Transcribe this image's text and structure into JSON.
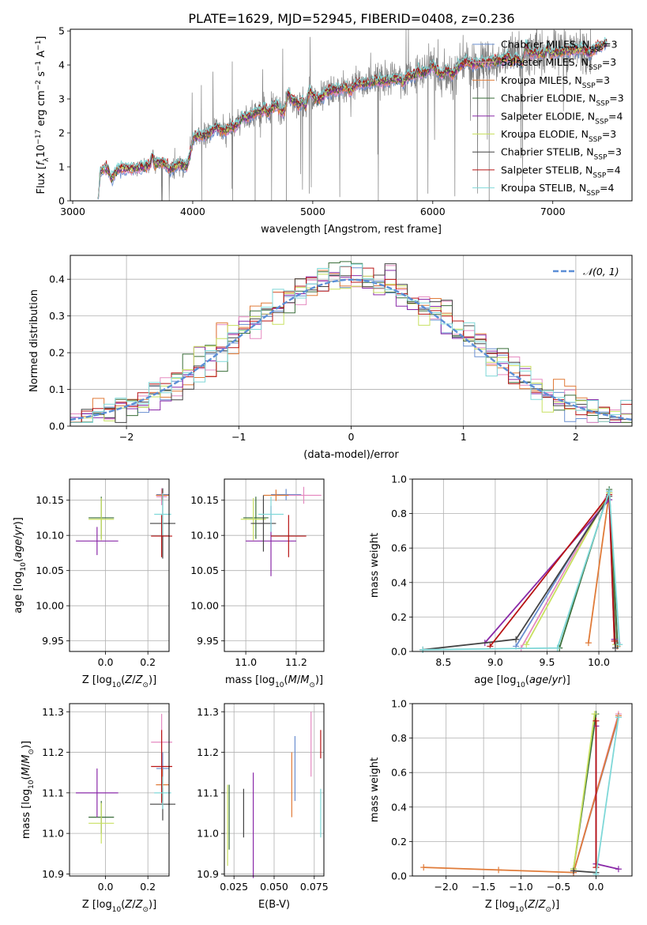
{
  "figure_title": "PLATE=1629, MJD=52945, FIBERID=0408, z=0.236",
  "colors": {
    "Chabrier MILES": "#6a8fd0",
    "Salpeter MILES": "#e58ac0",
    "Kroupa MILES": "#e07b39",
    "Chabrier ELODIE": "#3a6e3a",
    "Salpeter ELODIE": "#8a2aa8",
    "Kroupa ELODIE": "#c8e060",
    "Chabrier STELIB": "#444444",
    "Salpeter STELIB": "#b81414",
    "Kroupa STELIB": "#7fd8d8",
    "data": "#7f7f7f",
    "normal": "#5b8ed6"
  },
  "chart_data": [
    {
      "id": "spectrum",
      "type": "line",
      "title": "PLATE=1629, MJD=52945, FIBERID=0408, z=0.236",
      "xlabel": "wavelength [Angstrom, rest frame]",
      "ylabel": "Flux [f_λ 10^-17 erg cm^-2 s^-1 A^-1]",
      "ylabel_parts": [
        "Flux [",
        "f",
        "λ",
        "10",
        "−17",
        " erg cm",
        "−2",
        " s",
        "−1",
        " A",
        "−1",
        "]"
      ],
      "xlim": [
        2980,
        7660
      ],
      "ylim": [
        0,
        5.05
      ],
      "xticks": [
        3000,
        4000,
        5000,
        6000,
        7000
      ],
      "yticks": [
        0,
        1,
        2,
        3,
        4,
        5
      ],
      "grid": false,
      "legend_position": "right",
      "legend": [
        [
          "Chabrier MILES, N",
          "SSP",
          "=3"
        ],
        [
          "Salpeter MILES, N",
          "SSP",
          "=3"
        ],
        [
          "Kroupa MILES, N",
          "SSP",
          "=3"
        ],
        [
          "Chabrier ELODIE, N",
          "SSP",
          "=3"
        ],
        [
          "Salpeter ELODIE, N",
          "SSP",
          "=4"
        ],
        [
          "Kroupa ELODIE, N",
          "SSP",
          "=3"
        ],
        [
          "Chabrier STELIB, N",
          "SSP",
          "=3"
        ],
        [
          "Salpeter STELIB, N",
          "SSP",
          "=4"
        ],
        [
          "Kroupa STELIB, N",
          "SSP",
          "=4"
        ]
      ],
      "continuum": {
        "x": [
          3210,
          3230,
          3300,
          3400,
          3500,
          3600,
          3700,
          3800,
          3900,
          3950,
          4000,
          4100,
          4300,
          4500,
          4700,
          4900,
          5100,
          5300,
          5500,
          5700,
          5900,
          6100,
          6300,
          6500,
          6700,
          6900,
          7100,
          7300,
          7450
        ],
        "y": [
          0.05,
          0.85,
          1.05,
          0.95,
          0.95,
          1.0,
          1.1,
          1.15,
          1.05,
          1.0,
          1.6,
          1.9,
          2.3,
          2.6,
          2.85,
          3.0,
          3.2,
          3.35,
          3.5,
          3.6,
          3.75,
          3.9,
          4.0,
          4.1,
          4.2,
          4.3,
          4.4,
          4.5,
          4.6
        ]
      },
      "data_wavelength_range": [
        3520,
        7330
      ],
      "model_wavelength_range": [
        3210,
        7450
      ]
    },
    {
      "id": "residuals",
      "type": "histogram",
      "xlabel": "(data-model)/error",
      "ylabel": "Normed distribution",
      "xlim": [
        -2.5,
        2.5
      ],
      "ylim": [
        0,
        0.465
      ],
      "xticks": [
        -2,
        -1,
        0,
        1,
        2
      ],
      "yticks": [
        0.0,
        0.1,
        0.2,
        0.3,
        0.4
      ],
      "grid": true,
      "legend_position": "top-right",
      "legend": [
        "𝒩(0, 1)"
      ],
      "bin_width": 0.1,
      "reference_curve": "normal(0,1) density"
    },
    {
      "id": "age-vs-Z",
      "type": "errorbar",
      "xlabel": "Z [log10(Z/Z⊙)]",
      "ylabel": "age  [log10(age/yr)]",
      "xlim": [
        -0.17,
        0.3
      ],
      "ylim": [
        9.935,
        10.18
      ],
      "xticks": [
        0.0,
        0.2
      ],
      "yticks": [
        9.95,
        10.0,
        10.05,
        10.1,
        10.15
      ],
      "grid": true,
      "points": [
        {
          "model": "Chabrier MILES",
          "x": 0.27,
          "y": 10.158,
          "xerr": 0.03,
          "yerr": 0.008
        },
        {
          "model": "Salpeter MILES",
          "x": 0.265,
          "y": 10.155,
          "xerr": 0.025,
          "yerr": 0.012
        },
        {
          "model": "Kroupa MILES",
          "x": 0.268,
          "y": 10.157,
          "xerr": 0.03,
          "yerr": 0.008
        },
        {
          "model": "Chabrier ELODIE",
          "x": -0.02,
          "y": 10.125,
          "xerr": 0.06,
          "yerr": 0.03
        },
        {
          "model": "Salpeter ELODIE",
          "x": -0.04,
          "y": 10.092,
          "xerr": 0.1,
          "yerr": 0.02
        },
        {
          "model": "Kroupa ELODIE",
          "x": -0.02,
          "y": 10.123,
          "xerr": 0.06,
          "yerr": 0.03
        },
        {
          "model": "Chabrier STELIB",
          "x": 0.27,
          "y": 10.117,
          "xerr": 0.06,
          "yerr": 0.05
        },
        {
          "model": "Salpeter STELIB",
          "x": 0.265,
          "y": 10.099,
          "xerr": 0.05,
          "yerr": 0.03
        },
        {
          "model": "Kroupa STELIB",
          "x": 0.27,
          "y": 10.13,
          "xerr": 0.04,
          "yerr": 0.03
        }
      ]
    },
    {
      "id": "age-vs-mass",
      "type": "errorbar",
      "xlabel": "mass [log10(M/M⊙)]",
      "ylabel": "",
      "xlim": [
        10.915,
        11.31
      ],
      "ylim": [
        9.935,
        10.18
      ],
      "xticks": [
        11.0,
        11.2
      ],
      "yticks": [
        9.95,
        10.0,
        10.05,
        10.1,
        10.15
      ],
      "grid": true,
      "points": [
        {
          "model": "Chabrier MILES",
          "x": 11.16,
          "y": 10.158,
          "xerr": 0.06,
          "yerr": 0.008
        },
        {
          "model": "Salpeter MILES",
          "x": 11.23,
          "y": 10.157,
          "xerr": 0.07,
          "yerr": 0.012
        },
        {
          "model": "Kroupa MILES",
          "x": 11.12,
          "y": 10.157,
          "xerr": 0.05,
          "yerr": 0.008
        },
        {
          "model": "Chabrier ELODIE",
          "x": 11.04,
          "y": 10.125,
          "xerr": 0.05,
          "yerr": 0.03
        },
        {
          "model": "Salpeter ELODIE",
          "x": 11.1,
          "y": 10.092,
          "xerr": 0.1,
          "yerr": 0.05
        },
        {
          "model": "Kroupa ELODIE",
          "x": 11.03,
          "y": 10.123,
          "xerr": 0.05,
          "yerr": 0.03
        },
        {
          "model": "Chabrier STELIB",
          "x": 11.07,
          "y": 10.117,
          "xerr": 0.05,
          "yerr": 0.04
        },
        {
          "model": "Salpeter STELIB",
          "x": 11.17,
          "y": 10.099,
          "xerr": 0.07,
          "yerr": 0.03
        },
        {
          "model": "Kroupa STELIB",
          "x": 11.1,
          "y": 10.13,
          "xerr": 0.05,
          "yerr": 0.025
        }
      ]
    },
    {
      "id": "weight-vs-age",
      "type": "line",
      "xlabel": "age  [log10(age/yr)]",
      "ylabel": "mass weight",
      "xlim": [
        8.2,
        10.32
      ],
      "ylim": [
        0,
        1.0
      ],
      "xticks": [
        8.5,
        9.0,
        9.5,
        10.0
      ],
      "yticks": [
        0.0,
        0.2,
        0.4,
        0.6,
        0.8,
        1.0
      ],
      "grid": true,
      "series": [
        {
          "model": "Chabrier MILES",
          "x": [
            9.2,
            10.1,
            10.18
          ],
          "y": [
            0.03,
            0.92,
            0.05
          ]
        },
        {
          "model": "Salpeter MILES",
          "x": [
            9.25,
            10.1,
            10.18
          ],
          "y": [
            0.02,
            0.93,
            0.05
          ]
        },
        {
          "model": "Kroupa MILES",
          "x": [
            9.9,
            10.1,
            10.18
          ],
          "y": [
            0.05,
            0.92,
            0.03
          ]
        },
        {
          "model": "Chabrier ELODIE",
          "x": [
            9.62,
            10.1,
            10.18
          ],
          "y": [
            0.02,
            0.94,
            0.04
          ]
        },
        {
          "model": "Salpeter ELODIE",
          "x": [
            8.9,
            10.1,
            10.15
          ],
          "y": [
            0.05,
            0.88,
            0.07
          ]
        },
        {
          "model": "Kroupa ELODIE",
          "x": [
            9.3,
            10.1,
            10.16
          ],
          "y": [
            0.04,
            0.92,
            0.04
          ]
        },
        {
          "model": "Chabrier STELIB",
          "x": [
            8.3,
            9.2,
            10.1,
            10.16
          ],
          "y": [
            0.01,
            0.07,
            0.9,
            0.02
          ]
        },
        {
          "model": "Salpeter STELIB",
          "x": [
            8.95,
            10.1,
            10.15
          ],
          "y": [
            0.03,
            0.91,
            0.06
          ]
        },
        {
          "model": "Kroupa STELIB",
          "x": [
            8.3,
            9.6,
            10.1,
            10.2
          ],
          "y": [
            0.01,
            0.02,
            0.93,
            0.04
          ]
        }
      ]
    },
    {
      "id": "mass-vs-Z",
      "type": "errorbar",
      "xlabel": "Z [log10(Z/Z⊙)]",
      "ylabel": "mass [log10(M/M⊙)]",
      "xlim": [
        -0.17,
        0.3
      ],
      "ylim": [
        10.895,
        11.32
      ],
      "xticks": [
        0.0,
        0.2
      ],
      "yticks": [
        10.9,
        11.0,
        11.1,
        11.2,
        11.3
      ],
      "grid": true,
      "points": [
        {
          "model": "Chabrier MILES",
          "x": 0.27,
          "y": 11.16,
          "xerr": 0.03,
          "yerr": 0.04
        },
        {
          "model": "Salpeter MILES",
          "x": 0.265,
          "y": 11.225,
          "xerr": 0.05,
          "yerr": 0.07
        },
        {
          "model": "Kroupa MILES",
          "x": 0.268,
          "y": 11.12,
          "xerr": 0.03,
          "yerr": 0.04
        },
        {
          "model": "Chabrier ELODIE",
          "x": -0.02,
          "y": 11.04,
          "xerr": 0.06,
          "yerr": 0.04
        },
        {
          "model": "Salpeter ELODIE",
          "x": -0.04,
          "y": 11.1,
          "xerr": 0.1,
          "yerr": 0.06
        },
        {
          "model": "Kroupa ELODIE",
          "x": -0.02,
          "y": 11.025,
          "xerr": 0.06,
          "yerr": 0.05
        },
        {
          "model": "Chabrier STELIB",
          "x": 0.27,
          "y": 11.072,
          "xerr": 0.06,
          "yerr": 0.04
        },
        {
          "model": "Salpeter STELIB",
          "x": 0.265,
          "y": 11.165,
          "xerr": 0.05,
          "yerr": 0.09
        },
        {
          "model": "Kroupa STELIB",
          "x": 0.27,
          "y": 11.1,
          "xerr": 0.04,
          "yerr": 0.04
        }
      ]
    },
    {
      "id": "mass-vs-ebv",
      "type": "errorbar",
      "xlabel": "E(B-V)",
      "ylabel": "",
      "xlim": [
        0.019,
        0.081
      ],
      "ylim": [
        10.895,
        11.32
      ],
      "xticks": [
        0.025,
        0.05,
        0.075
      ],
      "xtick_labels": [
        "0.025",
        "0.050",
        "0.075"
      ],
      "yticks": [
        10.9,
        11.0,
        11.1,
        11.2,
        11.3
      ],
      "grid": true,
      "points": [
        {
          "model": "Chabrier MILES",
          "x": 0.063,
          "y": 11.16,
          "xerr": 0.0,
          "yerr": 0.08
        },
        {
          "model": "Salpeter MILES",
          "x": 0.073,
          "y": 11.22,
          "xerr": 0.0,
          "yerr": 0.08
        },
        {
          "model": "Kroupa MILES",
          "x": 0.061,
          "y": 11.12,
          "xerr": 0.0,
          "yerr": 0.08
        },
        {
          "model": "Chabrier ELODIE",
          "x": 0.022,
          "y": 11.04,
          "xerr": 0.0,
          "yerr": 0.08
        },
        {
          "model": "Salpeter ELODIE",
          "x": 0.037,
          "y": 11.02,
          "xerr": 0.0,
          "yerr": 0.13
        },
        {
          "model": "Kroupa ELODIE",
          "x": 0.021,
          "y": 11.02,
          "xerr": 0.0,
          "yerr": 0.1
        },
        {
          "model": "Chabrier STELIB",
          "x": 0.031,
          "y": 11.05,
          "xerr": 0.0,
          "yerr": 0.06
        },
        {
          "model": "Salpeter STELIB",
          "x": 0.079,
          "y": 11.22,
          "xerr": 0.0,
          "yerr": 0.035
        },
        {
          "model": "Kroupa STELIB",
          "x": 0.079,
          "y": 11.05,
          "xerr": 0.0,
          "yerr": 0.06
        }
      ]
    },
    {
      "id": "weight-vs-Z",
      "type": "line",
      "xlabel": "Z [log10(Z/Z⊙)]",
      "ylabel": "mass weight",
      "xlim": [
        -2.45,
        0.48
      ],
      "ylim": [
        0,
        1.0
      ],
      "xticks": [
        -2.0,
        -1.5,
        -1.0,
        -0.5,
        0.0
      ],
      "yticks": [
        0.0,
        0.2,
        0.4,
        0.6,
        0.8,
        1.0
      ],
      "grid": true,
      "series": [
        {
          "model": "Chabrier MILES",
          "x": [
            -0.3,
            0.3
          ],
          "y": [
            0.02,
            0.92
          ]
        },
        {
          "model": "Salpeter MILES",
          "x": [
            -0.3,
            0.3
          ],
          "y": [
            0.02,
            0.94
          ]
        },
        {
          "model": "Kroupa MILES",
          "x": [
            -2.3,
            -1.3,
            -0.3,
            0.3
          ],
          "y": [
            0.05,
            0.035,
            0.02,
            0.93
          ]
        },
        {
          "model": "Chabrier ELODIE",
          "x": [
            -0.3,
            0.0
          ],
          "y": [
            0.04,
            0.94
          ]
        },
        {
          "model": "Salpeter ELODIE",
          "x": [
            0.0,
            0.0,
            0.3
          ],
          "y": [
            0.87,
            0.07,
            0.04
          ]
        },
        {
          "model": "Kroupa ELODIE",
          "x": [
            -0.3,
            -0.02
          ],
          "y": [
            0.04,
            0.94
          ]
        },
        {
          "model": "Chabrier STELIB",
          "x": [
            -0.3,
            0.0
          ],
          "y": [
            0.03,
            0.02
          ]
        },
        {
          "model": "Salpeter STELIB",
          "x": [
            0.0,
            0.0
          ],
          "y": [
            0.05,
            0.9
          ]
        },
        {
          "model": "Kroupa STELIB",
          "x": [
            0.0,
            0.3
          ],
          "y": [
            0.01,
            0.92
          ]
        }
      ]
    }
  ]
}
